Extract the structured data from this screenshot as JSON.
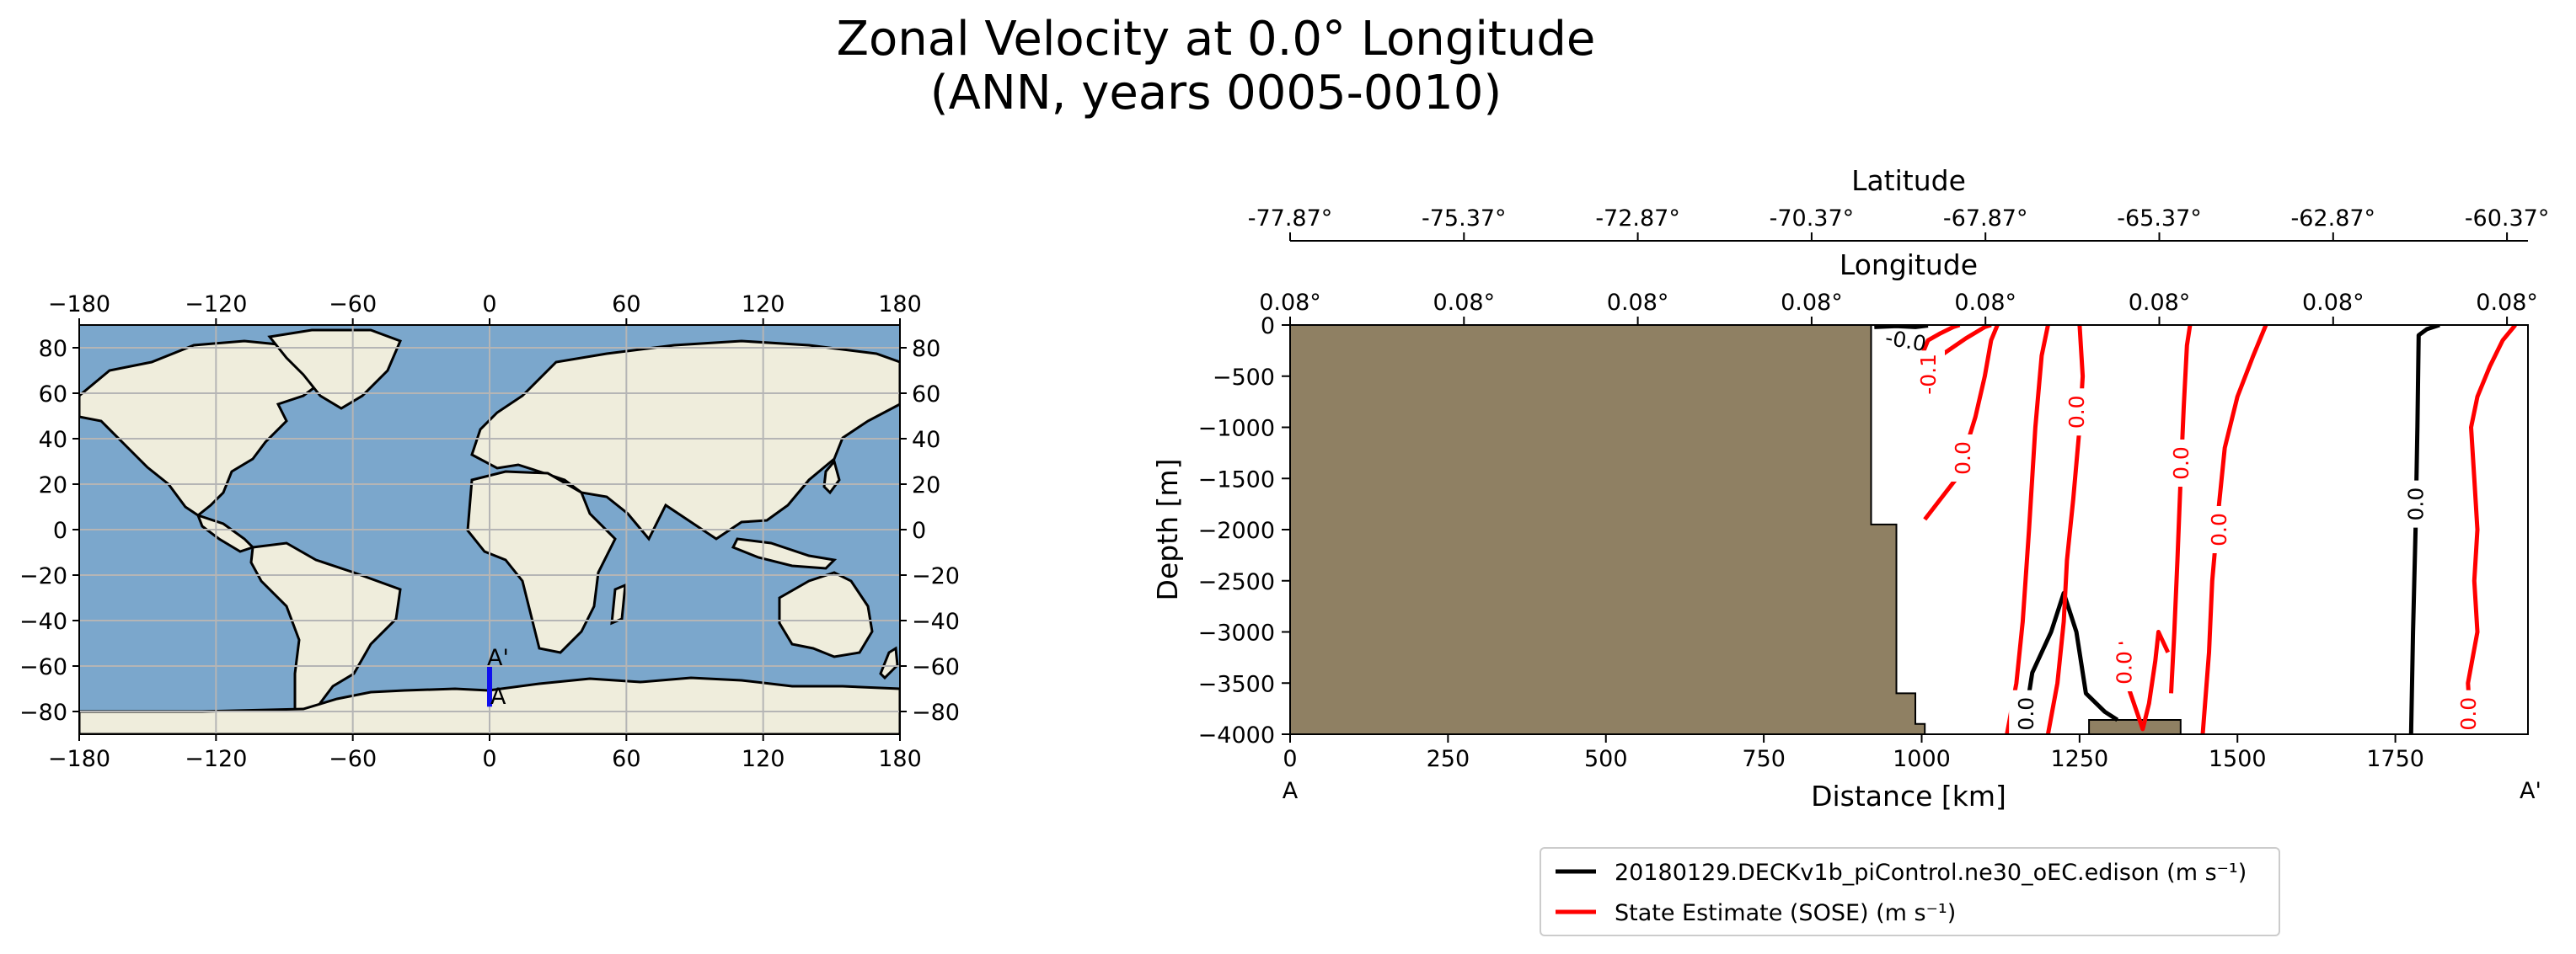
{
  "title": {
    "line1": "Zonal Velocity at 0.0° Longitude",
    "line2": "(ANN, years 0005-0010)"
  },
  "chart_data": [
    {
      "type": "map",
      "name": "transect location map",
      "x_ticks": [
        "−180",
        "−120",
        "−60",
        "0",
        "60",
        "120",
        "180"
      ],
      "y_ticks": [
        "80",
        "60",
        "40",
        "20",
        "0",
        "−20",
        "−40",
        "−60",
        "−80"
      ],
      "xlim": [
        -180,
        180
      ],
      "ylim": [
        -90,
        90
      ],
      "transect": {
        "longitude": 0.0,
        "lat_start": -77.87,
        "lat_end": -60.37,
        "start_label": "A",
        "end_label": "A'"
      },
      "colors": {
        "ocean": "#7ba7cc",
        "land": "#efeddc",
        "grid": "#b5b5b5",
        "transect": "#1010ee"
      }
    },
    {
      "type": "contour",
      "name": "zonal velocity transect",
      "xlabel": "Distance [km]",
      "ylabel": "Depth [m]",
      "xlim": [
        0,
        1960
      ],
      "ylim": [
        -4000,
        0
      ],
      "x_ticks": [
        0,
        250,
        500,
        750,
        1000,
        1250,
        1500,
        1750
      ],
      "y_ticks": [
        0,
        -500,
        -1000,
        -1500,
        -2000,
        -2500,
        -3000,
        -3500,
        -4000
      ],
      "x_end_labels": {
        "start": "A",
        "end": "A'"
      },
      "top_axes": [
        {
          "label": "Latitude",
          "ticks": [
            "-77.87°",
            "-75.37°",
            "-72.87°",
            "-70.37°",
            "-67.87°",
            "-65.37°",
            "-62.87°",
            "-60.37°"
          ]
        },
        {
          "label": "Longitude",
          "ticks": [
            "0.08°",
            "0.08°",
            "0.08°",
            "0.08°",
            "0.08°",
            "0.08°",
            "0.08°",
            "0.08°"
          ]
        }
      ],
      "bathymetry": {
        "fill_color": "#8f8063",
        "profile": [
          [
            0,
            0
          ],
          [
            920,
            0
          ],
          [
            920,
            -1950
          ],
          [
            960,
            -1950
          ],
          [
            960,
            -3600
          ],
          [
            990,
            -3600
          ],
          [
            990,
            -3900
          ],
          [
            1005,
            -3900
          ],
          [
            1005,
            -4000
          ],
          [
            1265,
            -4000
          ],
          [
            1265,
            -3860
          ],
          [
            1410,
            -3860
          ],
          [
            1410,
            -4000
          ],
          [
            0,
            -4000
          ]
        ]
      },
      "series": [
        {
          "name": "20180129.DECKv1b_piControl.ne30_oEC.edison (m s⁻¹)",
          "color": "#000000",
          "contours": [
            {
              "level": "-0.0",
              "points": [
                [
                  925,
                  -20
                ],
                [
                  960,
                  -10
                ],
                [
                  990,
                  -20
                ],
                [
                  1010,
                  -5
                ]
              ]
            },
            {
              "level": "0.0",
              "points": [
                [
                  1160,
                  -4000
                ],
                [
                  1175,
                  -3400
                ],
                [
                  1205,
                  -3000
                ],
                [
                  1225,
                  -2620
                ],
                [
                  1245,
                  -3000
                ],
                [
                  1260,
                  -3600
                ],
                [
                  1290,
                  -3780
                ],
                [
                  1310,
                  -3860
                ]
              ]
            },
            {
              "level": "0.0",
              "points": [
                [
                  1775,
                  -4000
                ],
                [
                  1778,
                  -3000
                ],
                [
                  1782,
                  -2000
                ],
                [
                  1785,
                  -1000
                ],
                [
                  1787,
                  -100
                ],
                [
                  1800,
                  -40
                ],
                [
                  1820,
                  0
                ]
              ]
            }
          ],
          "labels": [
            {
              "text": "-0.0",
              "x": 975,
              "y": -150
            },
            {
              "text": "0.0",
              "x": 1165,
              "y": -3800
            },
            {
              "text": "0.0",
              "x": 1782,
              "y": -1750
            }
          ]
        },
        {
          "name": "State Estimate (SOSE) (m s⁻¹)",
          "color": "#ff0000",
          "contours": [
            {
              "level": "-0.1",
              "points": [
                [
                  1000,
                  -300
                ],
                [
                  1010,
                  -150
                ],
                [
                  1030,
                  -80
                ],
                [
                  1050,
                  -20
                ],
                [
                  1060,
                  0
                ]
              ]
            },
            {
              "level": "-0.1",
              "points": [
                [
                  995,
                  -650
                ],
                [
                  1005,
                  -450
                ],
                [
                  1030,
                  -300
                ],
                [
                  1070,
                  -130
                ],
                [
                  1100,
                  -20
                ],
                [
                  1110,
                  0
                ]
              ]
            },
            {
              "level": "0.0",
              "points": [
                [
                  1005,
                  -1900
                ],
                [
                  1030,
                  -1700
                ],
                [
                  1055,
                  -1500
                ],
                [
                  1070,
                  -1200
                ],
                [
                  1085,
                  -900
                ],
                [
                  1100,
                  -500
                ],
                [
                  1110,
                  -150
                ],
                [
                  1120,
                  0
                ]
              ]
            },
            {
              "level": "0.0",
              "points": [
                [
                  1135,
                  -4000
                ],
                [
                  1150,
                  -3500
                ],
                [
                  1160,
                  -2900
                ],
                [
                  1170,
                  -2000
                ],
                [
                  1180,
                  -1000
                ],
                [
                  1190,
                  -300
                ],
                [
                  1200,
                  0
                ]
              ]
            },
            {
              "level": "0.0",
              "points": [
                [
                  1200,
                  -4000
                ],
                [
                  1215,
                  -3500
                ],
                [
                  1225,
                  -2900
                ],
                [
                  1230,
                  -2300
                ],
                [
                  1240,
                  -1700
                ],
                [
                  1250,
                  -1000
                ],
                [
                  1255,
                  -500
                ],
                [
                  1250,
                  0
                ]
              ]
            },
            {
              "level": "0.0",
              "points": [
                [
                  1315,
                  -3100
                ],
                [
                  1325,
                  -3500
                ],
                [
                  1350,
                  -3950
                ],
                [
                  1360,
                  -3700
                ],
                [
                  1370,
                  -3280
                ],
                [
                  1375,
                  -3000
                ],
                [
                  1390,
                  -3200
                ]
              ]
            },
            {
              "level": "0.0",
              "points": [
                [
                  1395,
                  -3600
                ],
                [
                  1400,
                  -3000
                ],
                [
                  1405,
                  -2300
                ],
                [
                  1410,
                  -1500
                ],
                [
                  1415,
                  -800
                ],
                [
                  1420,
                  -200
                ],
                [
                  1425,
                  0
                ]
              ]
            },
            {
              "level": "0.0",
              "points": [
                [
                  1445,
                  -4000
                ],
                [
                  1455,
                  -3200
                ],
                [
                  1460,
                  -2500
                ],
                [
                  1470,
                  -1800
                ],
                [
                  1480,
                  -1200
                ],
                [
                  1500,
                  -700
                ],
                [
                  1525,
                  -300
                ],
                [
                  1545,
                  0
                ]
              ]
            },
            {
              "level": "0.0",
              "points": [
                [
                  1870,
                  -4000
                ],
                [
                  1865,
                  -3500
                ],
                [
                  1880,
                  -3000
                ],
                [
                  1875,
                  -2500
                ],
                [
                  1880,
                  -2000
                ],
                [
                  1875,
                  -1500
                ],
                [
                  1870,
                  -1000
                ],
                [
                  1880,
                  -700
                ],
                [
                  1900,
                  -400
                ],
                [
                  1920,
                  -150
                ],
                [
                  1940,
                  0
                ]
              ]
            }
          ],
          "labels": [
            {
              "text": "-0.1",
              "x": 1010,
              "y": -480
            },
            {
              "text": "0.0",
              "x": 1065,
              "y": -1300
            },
            {
              "text": "0.0",
              "x": 1245,
              "y": -850
            },
            {
              "text": "0.0",
              "x": 1320,
              "y": -3350
            },
            {
              "text": "0.0",
              "x": 1410,
              "y": -1350
            },
            {
              "text": "0.0",
              "x": 1470,
              "y": -2000
            },
            {
              "text": "0.0",
              "x": 1865,
              "y": -3800
            }
          ]
        }
      ],
      "legend_position": "bottom-center"
    }
  ]
}
